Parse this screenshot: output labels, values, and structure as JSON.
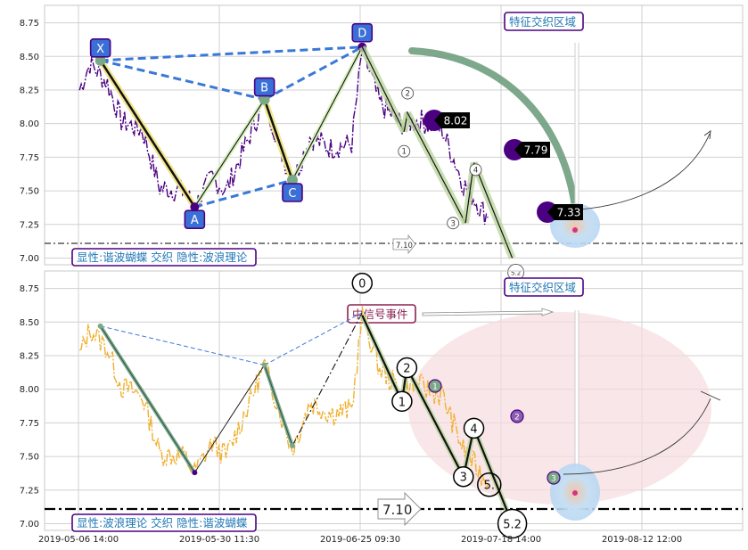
{
  "chart_data": [
    {
      "type": "line",
      "panel": "top",
      "ylim": [
        6.95,
        8.88
      ],
      "yticks": [
        "7.00",
        "7.25",
        "7.50",
        "7.75",
        "8.00",
        "8.25",
        "8.50",
        "8.75"
      ],
      "grid": true,
      "series_color": "#4b0082",
      "harmonic_points": [
        {
          "label": "X",
          "t": 0.08,
          "y": 8.47
        },
        {
          "label": "A",
          "t": 0.215,
          "y": 7.38
        },
        {
          "label": "B",
          "t": 0.315,
          "y": 8.18
        },
        {
          "label": "C",
          "t": 0.355,
          "y": 7.58
        },
        {
          "label": "D",
          "t": 0.455,
          "y": 8.57
        }
      ],
      "wave_points": [
        {
          "label": "1",
          "t": 0.515,
          "y": 7.94
        },
        {
          "label": "2",
          "t": 0.52,
          "y": 8.08
        },
        {
          "label": "3",
          "t": 0.603,
          "y": 7.26
        },
        {
          "label": "4",
          "t": 0.615,
          "y": 7.71
        },
        {
          "label": "5.2",
          "t": 0.67,
          "y": 7.0
        }
      ],
      "price_markers": [
        "8.02",
        "7.79",
        "7.33"
      ],
      "hline_label": "7.10",
      "hline_y": 7.1,
      "zone_label": "特征交织区域",
      "caption": "显性:谐波蝴蝶 交织 隐性:波浪理论"
    },
    {
      "type": "line",
      "panel": "bottom",
      "ylim": [
        6.95,
        8.88
      ],
      "yticks": [
        "7.00",
        "7.25",
        "7.50",
        "7.75",
        "8.00",
        "8.25",
        "8.50",
        "8.75"
      ],
      "grid": true,
      "series_color": "#f0b030",
      "wave_points": [
        {
          "label": "0",
          "t": 0.455,
          "y": 8.79
        },
        {
          "label": "1",
          "t": 0.512,
          "y": 7.91
        },
        {
          "label": "2",
          "t": 0.519,
          "y": 8.16
        },
        {
          "label": "3",
          "t": 0.6,
          "y": 7.35
        },
        {
          "label": "4",
          "t": 0.615,
          "y": 7.71
        },
        {
          "label": "5.",
          "t": 0.637,
          "y": 7.29
        },
        {
          "label": "5.2",
          "t": 0.67,
          "y": 7.0
        }
      ],
      "small_markers": [
        "1",
        "2",
        "3"
      ],
      "hline_label": "7.10",
      "hline_y": 7.1,
      "zone_label": "特征交织区域",
      "event_label": "中信号事件",
      "caption": "显性:波浪理论 交织 隐性:谐波蝴蝶"
    }
  ],
  "x_axis": {
    "ticks": [
      "2019-05-06 14:00",
      "2019-05-30 11:30",
      "2019-06-25 09:30",
      "2019-07-18 14:00",
      "2019-08-12 12:00"
    ]
  }
}
